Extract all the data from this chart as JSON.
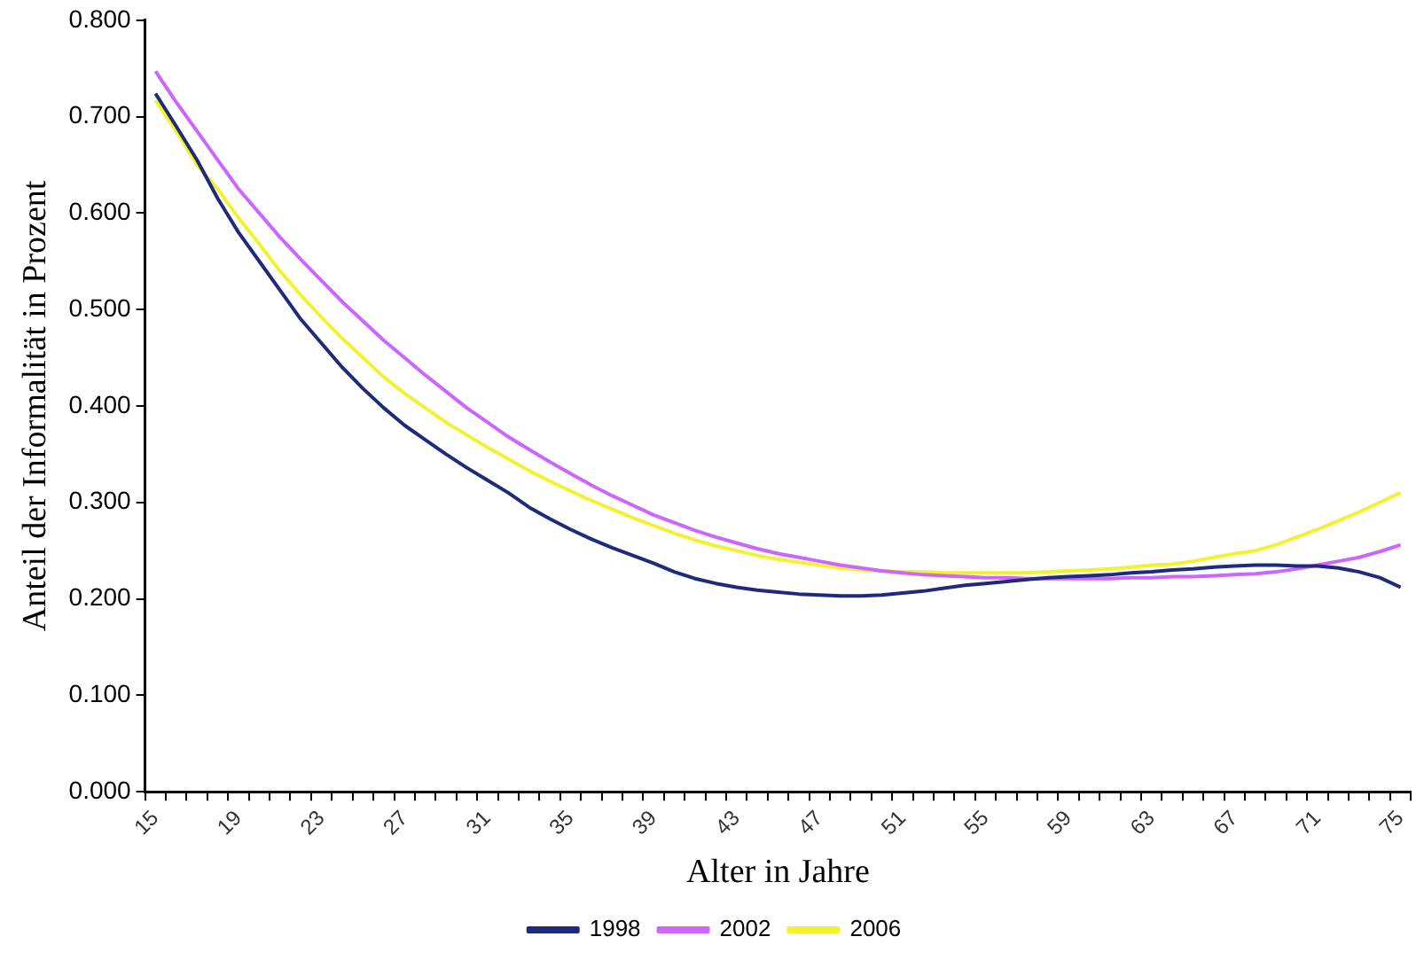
{
  "chart_data": {
    "type": "line",
    "xlabel": "Alter in Jahre",
    "ylabel": "Anteil der Informalität in Prozent",
    "categories": [
      "15",
      null,
      null,
      null,
      "19",
      null,
      null,
      null,
      "23",
      null,
      null,
      null,
      "27",
      null,
      null,
      null,
      "31",
      null,
      null,
      null,
      "35",
      null,
      null,
      null,
      "39",
      null,
      null,
      null,
      "43",
      null,
      null,
      null,
      "47",
      null,
      null,
      null,
      "51",
      null,
      null,
      null,
      "55",
      null,
      null,
      null,
      "59",
      null,
      null,
      null,
      "63",
      null,
      null,
      null,
      "67",
      null,
      null,
      null,
      "71",
      null,
      null,
      null,
      "75"
    ],
    "ylim": [
      0,
      0.8
    ],
    "yticks": [
      {
        "value": 0,
        "label": "0.000"
      },
      {
        "value": 0.1,
        "label": "0.100"
      },
      {
        "value": 0.2,
        "label": "0.200"
      },
      {
        "value": 0.3,
        "label": "0.300"
      },
      {
        "value": 0.4,
        "label": "0.400"
      },
      {
        "value": 0.5,
        "label": "0.500"
      },
      {
        "value": 0.6,
        "label": "0.600"
      },
      {
        "value": 0.7,
        "label": "0.700"
      },
      {
        "value": 0.8,
        "label": "0.800"
      }
    ],
    "grid": false,
    "legend": "bottom",
    "marker": "none",
    "line_style": "solid",
    "series": [
      {
        "name": "1998",
        "color": "#1f2a7a",
        "values": [
          0.724,
          0.69,
          0.655,
          0.615,
          0.58,
          0.55,
          0.52,
          0.49,
          0.465,
          0.44,
          0.418,
          0.398,
          0.38,
          0.365,
          0.35,
          0.336,
          0.323,
          0.31,
          0.295,
          0.283,
          0.272,
          0.262,
          0.253,
          0.245,
          0.237,
          0.228,
          0.221,
          0.216,
          0.212,
          0.209,
          0.207,
          0.205,
          0.204,
          0.203,
          0.203,
          0.204,
          0.206,
          0.208,
          0.211,
          0.214,
          0.216,
          0.218,
          0.22,
          0.222,
          0.223,
          0.224,
          0.225,
          0.227,
          0.228,
          0.23,
          0.231,
          0.233,
          0.234,
          0.235,
          0.235,
          0.234,
          0.234,
          0.232,
          0.228,
          0.222,
          0.212
        ]
      },
      {
        "name": "2002",
        "color": "#cc66ff",
        "values": [
          0.747,
          0.715,
          0.685,
          0.655,
          0.625,
          0.6,
          0.575,
          0.552,
          0.53,
          0.508,
          0.488,
          0.468,
          0.45,
          0.432,
          0.415,
          0.398,
          0.383,
          0.368,
          0.355,
          0.342,
          0.33,
          0.318,
          0.307,
          0.297,
          0.287,
          0.279,
          0.271,
          0.264,
          0.258,
          0.252,
          0.247,
          0.243,
          0.239,
          0.235,
          0.232,
          0.229,
          0.227,
          0.225,
          0.224,
          0.223,
          0.222,
          0.222,
          0.221,
          0.221,
          0.221,
          0.221,
          0.221,
          0.222,
          0.222,
          0.223,
          0.223,
          0.224,
          0.225,
          0.226,
          0.228,
          0.231,
          0.235,
          0.239,
          0.243,
          0.249,
          0.256
        ]
      },
      {
        "name": "2006",
        "color": "#f2f230",
        "values": [
          0.717,
          0.685,
          0.65,
          0.625,
          0.595,
          0.568,
          0.54,
          0.515,
          0.492,
          0.47,
          0.45,
          0.43,
          0.413,
          0.398,
          0.383,
          0.37,
          0.357,
          0.345,
          0.333,
          0.322,
          0.312,
          0.302,
          0.293,
          0.284,
          0.276,
          0.268,
          0.261,
          0.255,
          0.25,
          0.245,
          0.241,
          0.238,
          0.235,
          0.232,
          0.23,
          0.229,
          0.228,
          0.228,
          0.227,
          0.227,
          0.227,
          0.227,
          0.227,
          0.228,
          0.229,
          0.23,
          0.231,
          0.233,
          0.235,
          0.236,
          0.239,
          0.243,
          0.247,
          0.25,
          0.256,
          0.264,
          0.272,
          0.281,
          0.29,
          0.3,
          0.31
        ]
      }
    ]
  }
}
